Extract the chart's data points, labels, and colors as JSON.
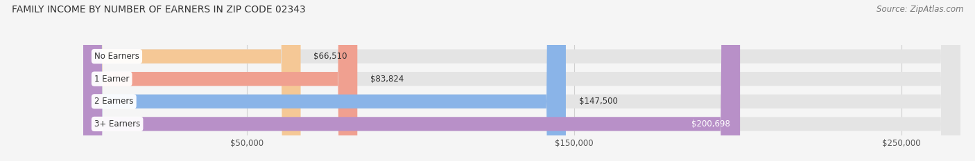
{
  "title": "FAMILY INCOME BY NUMBER OF EARNERS IN ZIP CODE 02343",
  "source": "Source: ZipAtlas.com",
  "categories": [
    "No Earners",
    "1 Earner",
    "2 Earners",
    "3+ Earners"
  ],
  "values": [
    66510,
    83824,
    147500,
    200698
  ],
  "bar_colors": [
    "#f5c896",
    "#f0a090",
    "#8ab4e8",
    "#b890c8"
  ],
  "bar_bg_color": "#e4e4e4",
  "value_labels": [
    "$66,510",
    "$83,824",
    "$147,500",
    "$200,698"
  ],
  "value_inside": [
    false,
    false,
    false,
    true
  ],
  "x_ticks": [
    50000,
    150000,
    250000
  ],
  "x_tick_labels": [
    "$50,000",
    "$150,000",
    "$250,000"
  ],
  "xmin": 0,
  "xmax": 268000,
  "title_fontsize": 10,
  "source_fontsize": 8.5,
  "label_fontsize": 8.5,
  "value_fontsize": 8.5,
  "tick_fontsize": 8.5,
  "background_color": "#f5f5f5",
  "label_bg_color": "#ffffff",
  "grid_color": "#d0d0d0"
}
